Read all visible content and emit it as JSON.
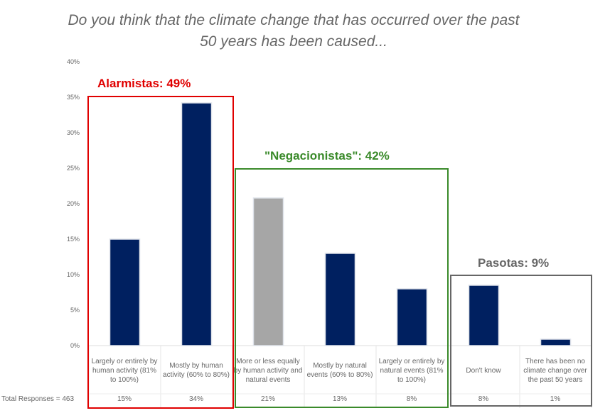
{
  "chart_data": {
    "type": "bar",
    "title": "Do you think that the climate change that has occurred over the past 50 years has been caused...",
    "title_lines": [
      "Do you think that the climate change that has occurred over the past",
      "50 years has been caused..."
    ],
    "categories": [
      "Largely or entirely by human activity (81% to 100%)",
      "Mostly by human activity (60% to 80%)",
      "More or less equally by human activity and natural events",
      "Mostly by natural events (60% to 80%)",
      "Largely or entirely by natural events (81% to 100%)",
      "Don't know",
      "There has been no climate change over the past 50 years"
    ],
    "values": [
      15,
      34.2,
      20.8,
      13,
      8,
      8.5,
      0.9
    ],
    "value_labels": [
      "15%",
      "34%",
      "21%",
      "13%",
      "8%",
      "8%",
      "1%"
    ],
    "bar_colors": [
      "#002060",
      "#002060",
      "#a6a6a6",
      "#002060",
      "#002060",
      "#002060",
      "#002060"
    ],
    "ylim": [
      0,
      40
    ],
    "yticks": [
      "0%",
      "5%",
      "10%",
      "15%",
      "20%",
      "25%",
      "30%",
      "35%",
      "40%"
    ],
    "total_responses": "Total Responses = 463",
    "groups": [
      {
        "label": "Alarmistas: 49%",
        "color": "#e00000"
      },
      {
        "label": "\"Negacionistas\": 42%",
        "color": "#3a8a2a"
      },
      {
        "label": "Pasotas: 9%",
        "color": "#666666"
      }
    ]
  }
}
